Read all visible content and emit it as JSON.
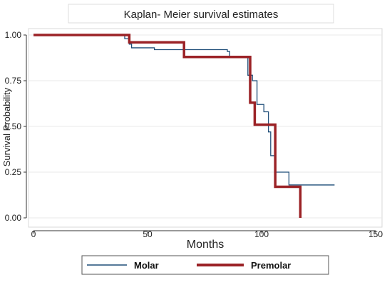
{
  "chart_data": {
    "type": "line",
    "title": "Kaplan- Meier survival estimates",
    "xlabel": "Months",
    "ylabel": "Survival Probability",
    "xlim": [
      0,
      150
    ],
    "ylim": [
      0,
      1
    ],
    "x_ticks": [
      0,
      50,
      100,
      150
    ],
    "y_ticks": [
      0,
      0.25,
      0.5,
      0.75,
      1.0
    ],
    "x_tick_labels": [
      "0",
      "50",
      "100",
      "150"
    ],
    "y_tick_labels": [
      "0.00",
      "0.25",
      "0.50",
      "0.75",
      "1.00"
    ],
    "grid": "horizontal",
    "legend_position": "bottom",
    "series": [
      {
        "name": "Molar",
        "color": "#1f4e79",
        "step_points": [
          [
            0,
            1.0
          ],
          [
            40,
            0.98
          ],
          [
            42,
            0.95
          ],
          [
            43,
            0.93
          ],
          [
            53,
            0.92
          ],
          [
            85,
            0.91
          ],
          [
            86,
            0.88
          ],
          [
            94,
            0.78
          ],
          [
            96,
            0.75
          ],
          [
            98,
            0.62
          ],
          [
            101,
            0.58
          ],
          [
            103,
            0.47
          ],
          [
            104,
            0.34
          ],
          [
            106,
            0.25
          ],
          [
            112,
            0.18
          ],
          [
            132,
            0.18
          ]
        ]
      },
      {
        "name": "Premolar",
        "color": "#9b2226",
        "step_points": [
          [
            0,
            1.0
          ],
          [
            42,
            0.96
          ],
          [
            66,
            0.88
          ],
          [
            95,
            0.63
          ],
          [
            97,
            0.51
          ],
          [
            106,
            0.17
          ],
          [
            117,
            0.0
          ]
        ]
      }
    ]
  }
}
